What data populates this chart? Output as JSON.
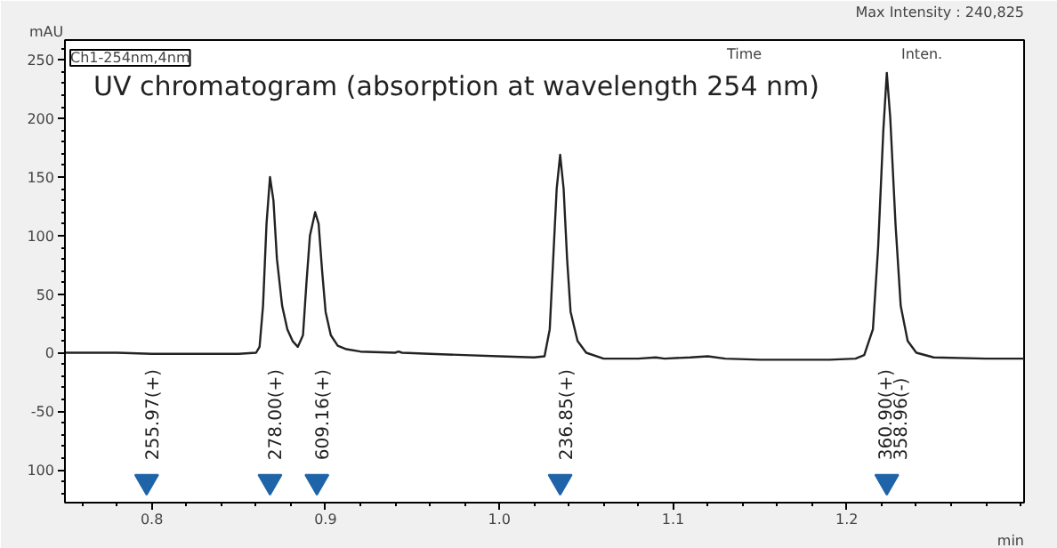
{
  "chart_data": {
    "type": "line",
    "title": "UV chromatogram (absorption at wavelength 254 nm)",
    "xlabel": "min",
    "ylabel": "mAU",
    "xlim": [
      0.75,
      1.302
    ],
    "ylim": [
      -128,
      267
    ],
    "xticks": [
      {
        "value": 0.8,
        "label": "0.8"
      },
      {
        "value": 0.9,
        "label": "0.9"
      },
      {
        "value": 1.0,
        "label": "1.0"
      },
      {
        "value": 1.1,
        "label": "1.1"
      },
      {
        "value": 1.2,
        "label": "1.2"
      }
    ],
    "yticks": [
      250,
      200,
      150,
      100,
      50,
      0,
      -50,
      {
        "value": -100,
        "label": "100"
      }
    ],
    "grid": false,
    "series": [
      {
        "color": "#222222",
        "x": [
          0.75,
          0.78,
          0.8,
          0.85,
          0.86,
          0.862,
          0.864,
          0.866,
          0.868,
          0.87,
          0.872,
          0.875,
          0.878,
          0.881,
          0.884,
          0.887,
          0.889,
          0.891,
          0.894,
          0.896,
          0.898,
          0.9,
          0.903,
          0.907,
          0.912,
          0.92,
          0.94,
          0.942,
          0.944,
          0.96,
          0.98,
          1.0,
          1.02,
          1.026,
          1.029,
          1.031,
          1.033,
          1.035,
          1.037,
          1.039,
          1.041,
          1.045,
          1.05,
          1.06,
          1.08,
          1.09,
          1.095,
          1.11,
          1.12,
          1.13,
          1.15,
          1.19,
          1.205,
          1.21,
          1.215,
          1.218,
          1.221,
          1.223,
          1.225,
          1.228,
          1.231,
          1.235,
          1.24,
          1.25,
          1.28,
          1.302
        ],
        "values": [
          0,
          0,
          -1,
          -1,
          0,
          5,
          40,
          110,
          150,
          130,
          80,
          40,
          20,
          10,
          5,
          15,
          60,
          100,
          120,
          110,
          70,
          35,
          15,
          6,
          3,
          1,
          0,
          1,
          0,
          -1,
          -2,
          -3,
          -4,
          -3,
          20,
          80,
          140,
          169,
          140,
          80,
          35,
          10,
          0,
          -5,
          -5,
          -4,
          -5,
          -4,
          -3,
          -5,
          -6,
          -6,
          -5,
          -2,
          20,
          90,
          190,
          239,
          200,
          110,
          40,
          10,
          0,
          -4,
          -5,
          -5
        ]
      },
      {
        "type": "scatter",
        "marker": "triangle",
        "color": "#1f64a8",
        "x": [
          0.797,
          0.868,
          0.895,
          1.035,
          1.223
        ],
        "values": [
          -110,
          -110,
          -110,
          -110,
          -110
        ]
      }
    ],
    "annotations": [
      "Ch1-254nm,4nm",
      "Time",
      "Inten.",
      "Max Intensity : 240,825",
      {
        "text": "255.97(+)",
        "x": 0.797,
        "y": -110
      },
      {
        "text": "278.00(+)",
        "x": 0.868,
        "y": -110
      },
      {
        "text": "609.16(+)",
        "x": 0.895,
        "y": -110
      },
      {
        "text": "236.85(+)",
        "x": 1.035,
        "y": -110
      },
      {
        "text": "360.90(+)",
        "x": 1.219,
        "y": -110
      },
      {
        "text": "358.96(-)",
        "x": 1.228,
        "y": -110
      }
    ]
  }
}
